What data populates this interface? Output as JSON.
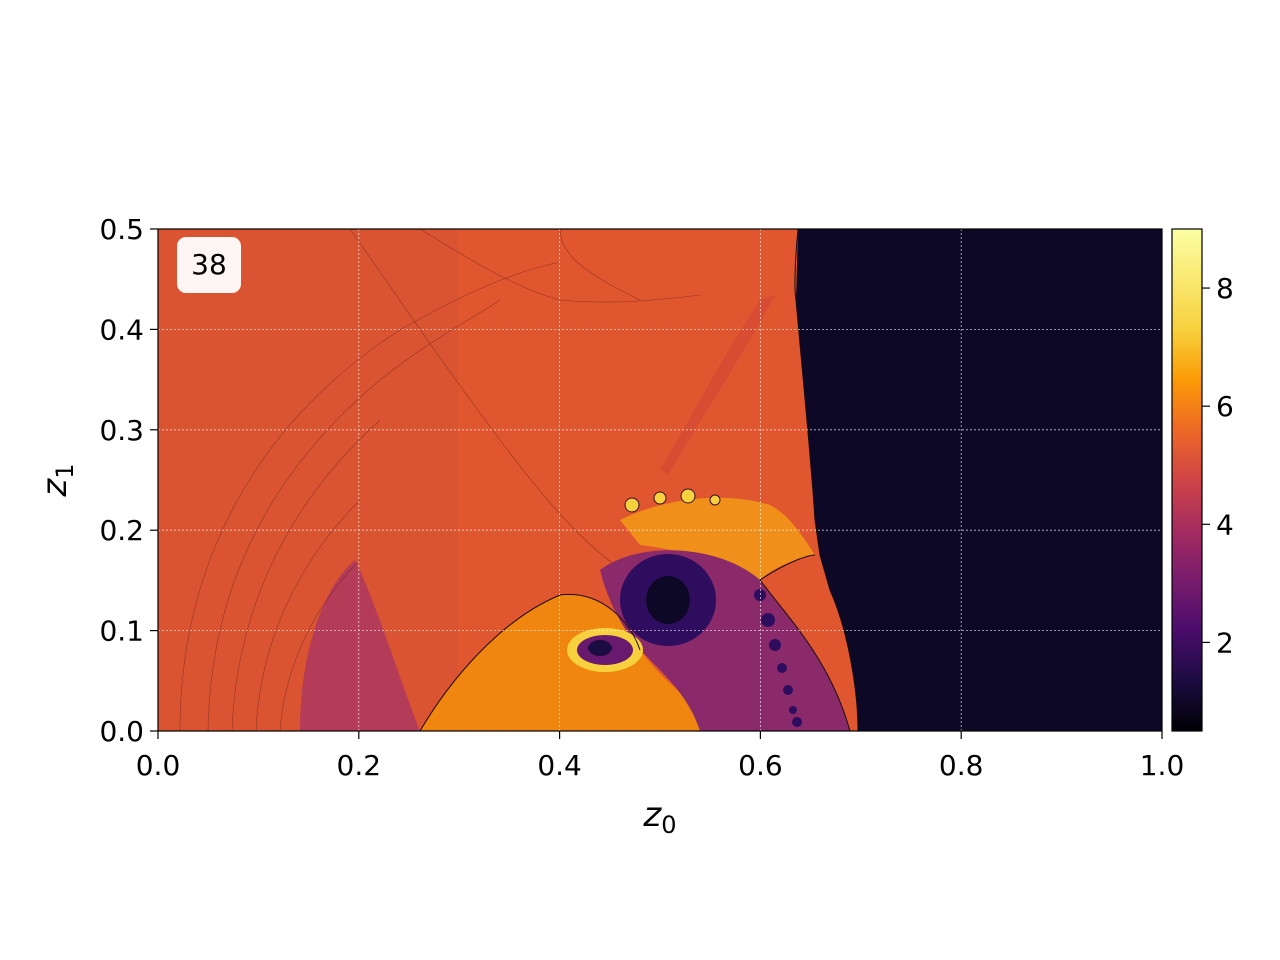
{
  "chart_data": {
    "type": "heatmap",
    "annotation": "38",
    "xlabel_base": "z",
    "xlabel_sub": "0",
    "ylabel_base": "z",
    "ylabel_sub": "1",
    "xlim": [
      0.0,
      1.0
    ],
    "ylim": [
      0.0,
      0.5
    ],
    "x_ticks": [
      "0.0",
      "0.2",
      "0.4",
      "0.6",
      "0.8",
      "1.0"
    ],
    "y_ticks": [
      "0.0",
      "0.1",
      "0.2",
      "0.3",
      "0.4",
      "0.5"
    ],
    "grid": true,
    "colormap": "inferno",
    "colorbar": {
      "vmin": 0.5,
      "vmax": 9.0,
      "ticks": [
        "2",
        "4",
        "6",
        "8"
      ],
      "tick_values": [
        2,
        4,
        6,
        8
      ]
    },
    "field_values": {
      "left_background": 5.9,
      "right_region": 0.6,
      "lower_left_lobe": 4.8,
      "shocked_lobe": 7.4,
      "vortex_core": 1.5
    },
    "colors": {
      "background_left": "#e0562f",
      "right_region": "#0c0826",
      "lower_left_lobe": "#b43c58",
      "shocked_lobe": "#f0860f",
      "vortex_core": "#2e0d5e",
      "vortex_ring": "#6a1a6e",
      "bright_rim": "#fbb61a"
    }
  }
}
